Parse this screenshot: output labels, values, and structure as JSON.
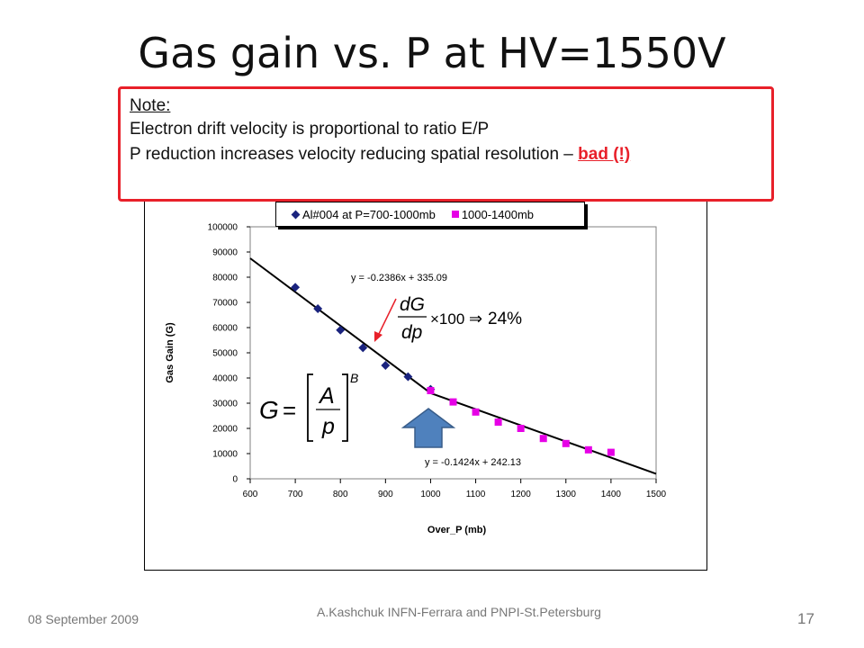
{
  "slide": {
    "title": "Gas gain vs. P at HV=1550V",
    "note_title": "Note:",
    "note_line1": "Electron drift velocity is proportional to ratio E/P",
    "note_line2_prefix": "P reduction increases velocity reducing spatial resolution – ",
    "note_line2_bad": "bad (!)",
    "footer_date": "08 September 2009",
    "footer_author": "A.Kashchuk  INFN-Ferrara and PNPI-St.Petersburg",
    "page_number": "17"
  },
  "chart_data": {
    "type": "scatter",
    "xlabel": "Over_P (mb)",
    "ylabel": "Gas Gain (G)",
    "xlim": [
      600,
      1500
    ],
    "ylim": [
      0,
      100000
    ],
    "xticks": [
      "600",
      "700",
      "800",
      "900",
      "1000",
      "1100",
      "1200",
      "1300",
      "1400",
      "1500"
    ],
    "yticks": [
      "0",
      "10000",
      "20000",
      "30000",
      "40000",
      "50000",
      "60000",
      "70000",
      "80000",
      "90000",
      "100000"
    ],
    "grid": false,
    "legend_position": "top",
    "series": [
      {
        "name": "Al#004 at P=700-1000mb",
        "marker": "diamond",
        "color": "#1a237e",
        "x": [
          700,
          750,
          800,
          850,
          900,
          950,
          1000
        ],
        "y": [
          76000,
          67500,
          59000,
          52000,
          45000,
          40500,
          35500
        ]
      },
      {
        "name": "1000-1400mb",
        "marker": "square",
        "color": "#e600e6",
        "x": [
          1000,
          1050,
          1100,
          1150,
          1200,
          1250,
          1300,
          1350,
          1400
        ],
        "y": [
          35000,
          30500,
          26500,
          22500,
          20000,
          16000,
          14000,
          11500,
          10500
        ]
      }
    ],
    "fit_lines": [
      {
        "label": "y = -0.2386x + 335.09",
        "x": [
          600,
          1000
        ],
        "y": [
          87500,
          34000
        ]
      },
      {
        "label": "y = -0.1424x + 242.13",
        "x": [
          1000,
          1500
        ],
        "y": [
          34000,
          2000
        ]
      }
    ],
    "annotations": {
      "derivative_formula": "dG/dp × 100 ⇒ 24%",
      "gain_formula": "G = [A/p]^B"
    }
  }
}
